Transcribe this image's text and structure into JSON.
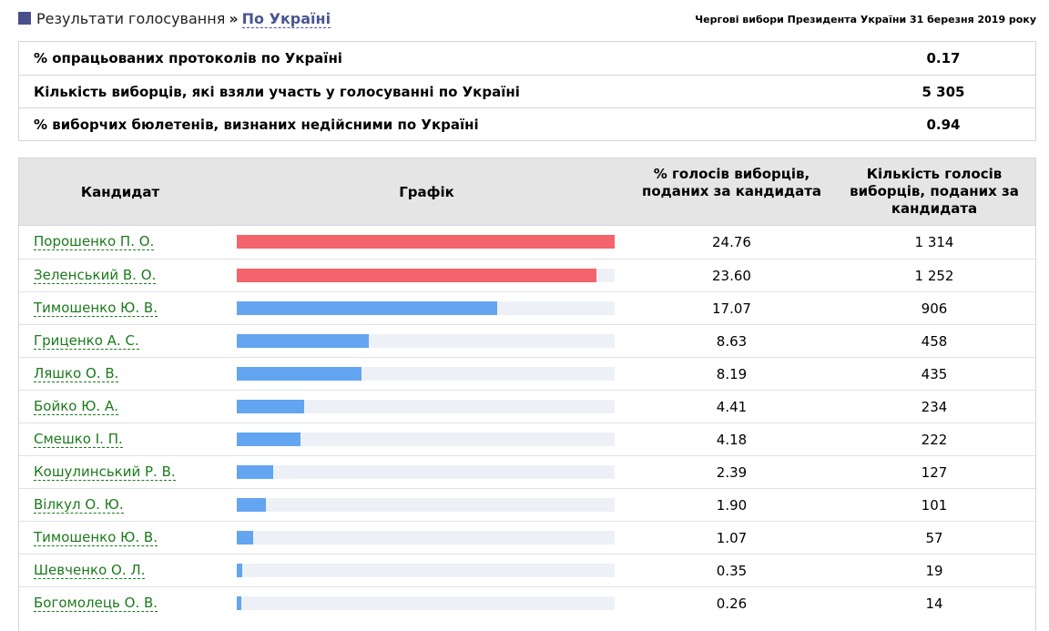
{
  "header": {
    "breadcrumb_root": "Результати голосування",
    "breadcrumb_sep": "»",
    "breadcrumb_current": "По Україні",
    "election_title": "Чергові вибори Президента України 31 березня 2019 року"
  },
  "summary": [
    {
      "label": "% опрацьованих протоколів по Україні",
      "value": "0.17"
    },
    {
      "label": "Кількість виборців, які взяли участь у голосуванні по Україні",
      "value": "5 305"
    },
    {
      "label": "% виборчих бюлетенів, визнаних недійсними по Україні",
      "value": "0.94"
    }
  ],
  "table": {
    "headers": {
      "candidate": "Кандидат",
      "graph": "Графік",
      "pct": "% голосів виборців, поданих за кандидата",
      "count": "Кількість голосів виборців, поданих за кандидата"
    },
    "rows": [
      {
        "name": "Порошенко П. О.",
        "pct": "24.76",
        "count": "1 314",
        "bar": 1.0,
        "color": "#f4646c"
      },
      {
        "name": "Зеленський В. О.",
        "pct": "23.60",
        "count": "1 252",
        "bar": 0.953,
        "color": "#f4646c"
      },
      {
        "name": "Тимошенко Ю. В.",
        "pct": "17.07",
        "count": "906",
        "bar": 0.689,
        "color": "#63a5f0"
      },
      {
        "name": "Гриценко А. С.",
        "pct": "8.63",
        "count": "458",
        "bar": 0.349,
        "color": "#63a5f0"
      },
      {
        "name": "Ляшко О. В.",
        "pct": "8.19",
        "count": "435",
        "bar": 0.331,
        "color": "#63a5f0"
      },
      {
        "name": "Бойко Ю. А.",
        "pct": "4.41",
        "count": "234",
        "bar": 0.178,
        "color": "#63a5f0"
      },
      {
        "name": "Смешко І. П.",
        "pct": "4.18",
        "count": "222",
        "bar": 0.169,
        "color": "#63a5f0"
      },
      {
        "name": "Кошулинський Р. В.",
        "pct": "2.39",
        "count": "127",
        "bar": 0.097,
        "color": "#63a5f0"
      },
      {
        "name": "Вілкул О. Ю.",
        "pct": "1.90",
        "count": "101",
        "bar": 0.077,
        "color": "#63a5f0"
      },
      {
        "name": "Тимошенко Ю. В.",
        "pct": "1.07",
        "count": "57",
        "bar": 0.043,
        "color": "#63a5f0"
      },
      {
        "name": "Шевченко О. Л.",
        "pct": "0.35",
        "count": "19",
        "bar": 0.014,
        "color": "#63a5f0"
      },
      {
        "name": "Богомолець О. В.",
        "pct": "0.26",
        "count": "14",
        "bar": 0.011,
        "color": "#63a5f0"
      }
    ]
  }
}
